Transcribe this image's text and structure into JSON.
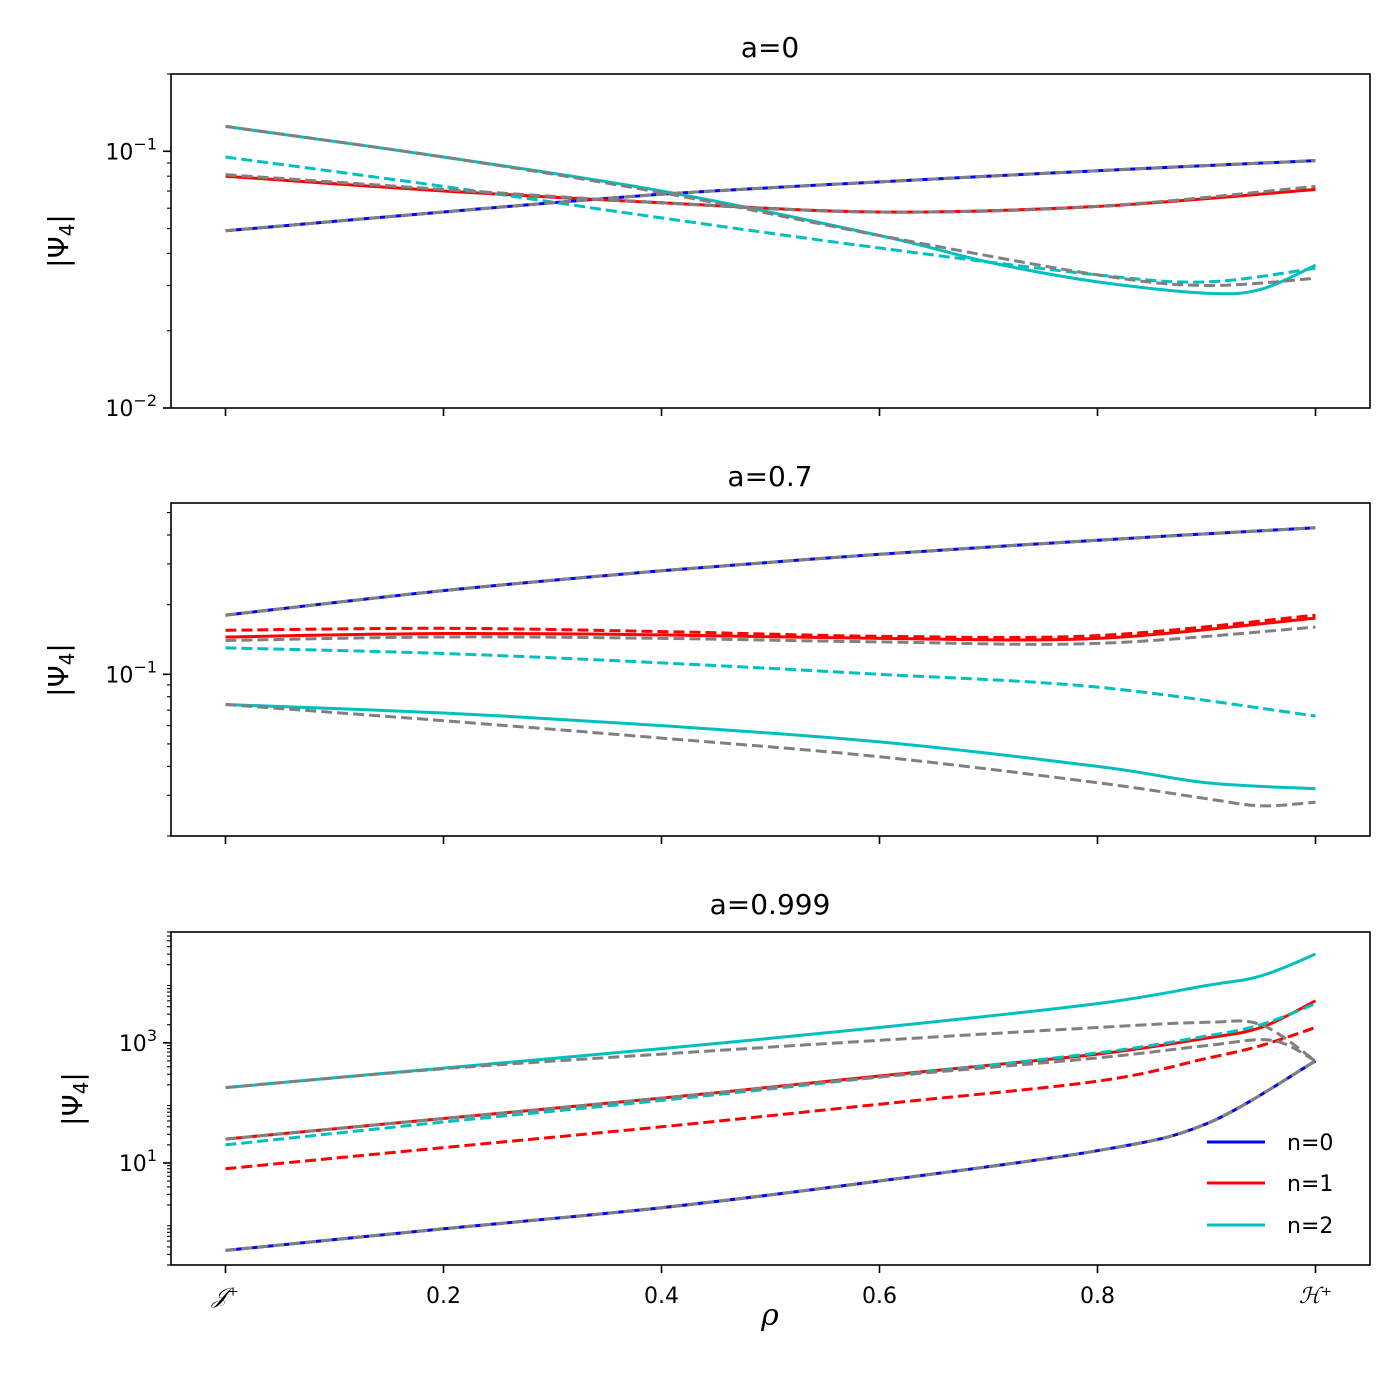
{
  "chart_data": {
    "type": "line",
    "xlabel": "ρ",
    "x_ticks": [
      {
        "value": 0.0,
        "label": "𝒥⁺"
      },
      {
        "value": 0.2,
        "label": "0.2"
      },
      {
        "value": 0.4,
        "label": "0.4"
      },
      {
        "value": 0.6,
        "label": "0.6"
      },
      {
        "value": 0.8,
        "label": "0.8"
      },
      {
        "value": 1.0,
        "label": "ℋ⁺"
      }
    ],
    "xlim": [
      -0.05,
      1.05
    ],
    "legend": {
      "placement": "lower-right",
      "entries": [
        {
          "label": "n=0",
          "color": "#0000ff"
        },
        {
          "label": "n=1",
          "color": "#ff0000"
        },
        {
          "label": "n=2",
          "color": "#00bfbf"
        }
      ]
    },
    "panels": [
      {
        "title": "a=0",
        "ylabel": "|Ψ4|",
        "yscale": "log",
        "ylim": [
          0.01,
          0.2
        ],
        "y_ticks": [
          {
            "value": 0.1,
            "base": "10",
            "exp": "−1"
          },
          {
            "value": 0.01,
            "base": "10",
            "exp": "−2"
          }
        ],
        "show_x_labels": false,
        "series": [
          {
            "name": "n=0",
            "color": "#0000ff",
            "style": "solid",
            "x": [
              0,
              0.2,
              0.4,
              0.6,
              0.8,
              1.0
            ],
            "y": [
              0.049,
              0.058,
              0.068,
              0.076,
              0.084,
              0.092
            ]
          },
          {
            "name": "n=1",
            "color": "#ff0000",
            "style": "solid",
            "x": [
              0,
              0.2,
              0.4,
              0.6,
              0.8,
              1.0
            ],
            "y": [
              0.08,
              0.07,
              0.063,
              0.058,
              0.061,
              0.071
            ]
          },
          {
            "name": "n=2",
            "color": "#00bfbf",
            "style": "solid",
            "x": [
              0,
              0.2,
              0.4,
              0.6,
              0.7,
              0.8,
              0.9,
              0.95,
              1.0
            ],
            "y": [
              0.125,
              0.095,
              0.07,
              0.047,
              0.037,
              0.031,
              0.028,
              0.029,
              0.036
            ]
          },
          {
            "name": "n=1 dashed",
            "color": "#ff0000",
            "style": "dashed",
            "x": [
              0,
              0.2,
              0.4,
              0.6,
              0.8,
              1.0
            ],
            "y": [
              0.081,
              0.071,
              0.063,
              0.058,
              0.061,
              0.072
            ]
          },
          {
            "name": "n=2 dashed",
            "color": "#00bfbf",
            "style": "dashed",
            "x": [
              0,
              0.2,
              0.4,
              0.6,
              0.8,
              0.9,
              1.0
            ],
            "y": [
              0.095,
              0.073,
              0.055,
              0.042,
              0.033,
              0.031,
              0.035
            ]
          },
          {
            "name": "n=0 approx",
            "color": "#808080",
            "style": "dashed",
            "x": [
              0,
              0.2,
              0.4,
              0.6,
              0.8,
              1.0
            ],
            "y": [
              0.049,
              0.058,
              0.068,
              0.076,
              0.084,
              0.092
            ]
          },
          {
            "name": "n=1 approx",
            "color": "#808080",
            "style": "dashed",
            "x": [
              0,
              0.2,
              0.4,
              0.6,
              0.8,
              1.0
            ],
            "y": [
              0.081,
              0.071,
              0.063,
              0.058,
              0.061,
              0.073
            ]
          },
          {
            "name": "n=2 approx",
            "color": "#808080",
            "style": "dashed",
            "x": [
              0,
              0.2,
              0.4,
              0.6,
              0.8,
              0.9,
              1.0
            ],
            "y": [
              0.125,
              0.095,
              0.069,
              0.047,
              0.033,
              0.03,
              0.032
            ]
          }
        ]
      },
      {
        "title": "a=0.7",
        "ylabel": "|Ψ4|",
        "yscale": "log",
        "ylim": [
          0.02,
          0.55
        ],
        "y_ticks": [
          {
            "value": 0.1,
            "base": "10",
            "exp": "−1"
          }
        ],
        "show_x_labels": false,
        "series": [
          {
            "name": "n=0",
            "color": "#0000ff",
            "style": "solid",
            "x": [
              0,
              0.2,
              0.4,
              0.6,
              0.8,
              1.0
            ],
            "y": [
              0.18,
              0.23,
              0.28,
              0.33,
              0.38,
              0.43
            ]
          },
          {
            "name": "n=1",
            "color": "#ff0000",
            "style": "solid",
            "x": [
              0,
              0.2,
              0.4,
              0.6,
              0.8,
              1.0
            ],
            "y": [
              0.145,
              0.15,
              0.148,
              0.143,
              0.143,
              0.175
            ]
          },
          {
            "name": "n=2",
            "color": "#00bfbf",
            "style": "solid",
            "x": [
              0,
              0.2,
              0.4,
              0.6,
              0.8,
              0.9,
              1.0
            ],
            "y": [
              0.074,
              0.068,
              0.06,
              0.051,
              0.04,
              0.034,
              0.032
            ]
          },
          {
            "name": "n=1 dashed",
            "color": "#ff0000",
            "style": "dashed",
            "x": [
              0,
              0.2,
              0.4,
              0.6,
              0.8,
              1.0
            ],
            "y": [
              0.155,
              0.158,
              0.153,
              0.146,
              0.147,
              0.18
            ]
          },
          {
            "name": "n=2 dashed",
            "color": "#00bfbf",
            "style": "dashed",
            "x": [
              0,
              0.2,
              0.4,
              0.6,
              0.8,
              1.0
            ],
            "y": [
              0.13,
              0.123,
              0.112,
              0.1,
              0.088,
              0.066
            ]
          },
          {
            "name": "n=0 approx",
            "color": "#808080",
            "style": "dashed",
            "x": [
              0,
              0.2,
              0.4,
              0.6,
              0.8,
              1.0
            ],
            "y": [
              0.18,
              0.23,
              0.28,
              0.33,
              0.38,
              0.43
            ]
          },
          {
            "name": "n=1 approx",
            "color": "#808080",
            "style": "dashed",
            "x": [
              0,
              0.2,
              0.4,
              0.6,
              0.8,
              1.0
            ],
            "y": [
              0.14,
              0.145,
              0.143,
              0.138,
              0.136,
              0.16
            ]
          },
          {
            "name": "n=2 approx",
            "color": "#808080",
            "style": "dashed",
            "x": [
              0,
              0.2,
              0.4,
              0.6,
              0.8,
              0.9,
              0.95,
              1.0
            ],
            "y": [
              0.074,
              0.063,
              0.053,
              0.044,
              0.034,
              0.029,
              0.027,
              0.028
            ]
          }
        ]
      },
      {
        "title": "a=0.999",
        "ylabel": "|Ψ4|",
        "yscale": "log",
        "ylim": [
          0.2,
          70000
        ],
        "y_ticks": [
          {
            "value": 1000,
            "base": "10",
            "exp": "3"
          },
          {
            "value": 10,
            "base": "10",
            "exp": "1"
          }
        ],
        "show_x_labels": true,
        "series": [
          {
            "name": "n=0",
            "color": "#0000ff",
            "style": "solid",
            "x": [
              0,
              0.2,
              0.4,
              0.6,
              0.8,
              0.9,
              1.0
            ],
            "y": [
              0.35,
              0.8,
              1.8,
              5,
              16,
              45,
              500
            ]
          },
          {
            "name": "n=1",
            "color": "#ff0000",
            "style": "solid",
            "x": [
              0,
              0.2,
              0.4,
              0.6,
              0.8,
              0.9,
              0.95,
              1.0
            ],
            "y": [
              25,
              55,
              120,
              280,
              650,
              1200,
              1800,
              5000
            ]
          },
          {
            "name": "n=2",
            "color": "#00bfbf",
            "style": "solid",
            "x": [
              0,
              0.2,
              0.4,
              0.6,
              0.8,
              0.9,
              0.95,
              1.0
            ],
            "y": [
              180,
              380,
              800,
              1800,
              4500,
              9000,
              13000,
              30000
            ]
          },
          {
            "name": "n=1 dashed",
            "color": "#ff0000",
            "style": "dashed",
            "x": [
              0,
              0.2,
              0.4,
              0.6,
              0.8,
              0.9,
              0.95,
              1.0
            ],
            "y": [
              8,
              18,
              40,
              95,
              230,
              550,
              900,
              1800
            ]
          },
          {
            "name": "n=2 dashed",
            "color": "#00bfbf",
            "style": "dashed",
            "x": [
              0,
              0.2,
              0.4,
              0.6,
              0.8,
              0.9,
              0.95,
              1.0
            ],
            "y": [
              20,
              48,
              110,
              270,
              680,
              1300,
              2000,
              4500
            ]
          },
          {
            "name": "n=0 approx",
            "color": "#808080",
            "style": "dashed",
            "x": [
              0,
              0.2,
              0.4,
              0.6,
              0.8,
              0.9,
              1.0
            ],
            "y": [
              0.35,
              0.8,
              1.8,
              5,
              16,
              45,
              500
            ]
          },
          {
            "name": "n=1 approx",
            "color": "#808080",
            "style": "dashed",
            "x": [
              0,
              0.2,
              0.4,
              0.6,
              0.8,
              0.9,
              0.96,
              1.0
            ],
            "y": [
              25,
              55,
              120,
              270,
              560,
              900,
              1100,
              500
            ]
          },
          {
            "name": "n=2 approx",
            "color": "#808080",
            "style": "dashed",
            "x": [
              0,
              0.2,
              0.4,
              0.6,
              0.8,
              0.9,
              0.95,
              1.0
            ],
            "y": [
              180,
              370,
              650,
              1100,
              1800,
              2200,
              2000,
              500
            ]
          }
        ]
      }
    ]
  }
}
